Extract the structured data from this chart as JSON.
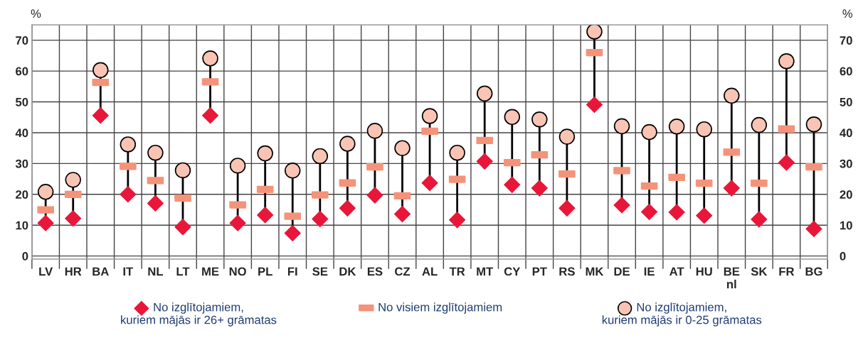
{
  "chart_data": {
    "type": "scatter",
    "categories": [
      "LV",
      "HR",
      "BA",
      "IT",
      "NL",
      "LT",
      "ME",
      "NO",
      "PL",
      "FI",
      "SE",
      "DK",
      "ES",
      "CZ",
      "AL",
      "TR",
      "MT",
      "CY",
      "PT",
      "RS",
      "MK",
      "DE",
      "IE",
      "AT",
      "HU",
      "BE\nnl",
      "SK",
      "FR",
      "BG"
    ],
    "series": [
      {
        "name": "No izglītojamiem,\nkuriem mājās ir 26+ grāmatas",
        "color": "#e8173a",
        "marker": "diamond",
        "values": [
          10.7,
          12.2,
          45.6,
          20.0,
          17.1,
          9.4,
          45.6,
          10.7,
          13.3,
          7.4,
          12.0,
          15.5,
          19.7,
          13.6,
          23.7,
          11.7,
          30.7,
          23.1,
          22.0,
          15.5,
          49.1,
          16.5,
          14.3,
          14.2,
          13.1,
          22.0,
          11.9,
          30.3,
          8.8
        ]
      },
      {
        "name": "No visiem izglītojamiem",
        "color": "#f4937a",
        "values": [
          15.0,
          20.0,
          56.3,
          29.1,
          24.5,
          18.8,
          56.5,
          16.6,
          21.6,
          12.9,
          19.8,
          23.7,
          28.9,
          19.5,
          40.5,
          24.9,
          37.5,
          30.3,
          32.8,
          26.6,
          66.0,
          27.7,
          22.7,
          25.5,
          23.6,
          33.7,
          23.6,
          41.2,
          28.9
        ]
      },
      {
        "name": "No izglītojamiem,\nkuriem mājās ir 0-25 grāmatas",
        "color": "#f9c4b4",
        "marker": "circle",
        "values": [
          20.8,
          24.7,
          60.3,
          36.2,
          33.5,
          27.8,
          64.1,
          29.3,
          33.3,
          27.7,
          32.4,
          36.4,
          40.6,
          35.0,
          45.4,
          33.5,
          52.7,
          45.1,
          44.3,
          38.7,
          72.8,
          42.1,
          40.2,
          42.0,
          41.1,
          52.0,
          42.5,
          63.2,
          42.7
        ]
      }
    ],
    "ylabel": "%",
    "y2label": "%",
    "ylim": [
      -1,
      75
    ],
    "yticks": [
      0,
      10,
      20,
      30,
      40,
      50,
      60,
      70
    ],
    "y2lim": [
      -1,
      75
    ],
    "y2ticks": [
      0,
      10,
      20,
      30,
      40,
      50,
      60,
      70
    ],
    "grid": true,
    "legend": "bottom"
  }
}
